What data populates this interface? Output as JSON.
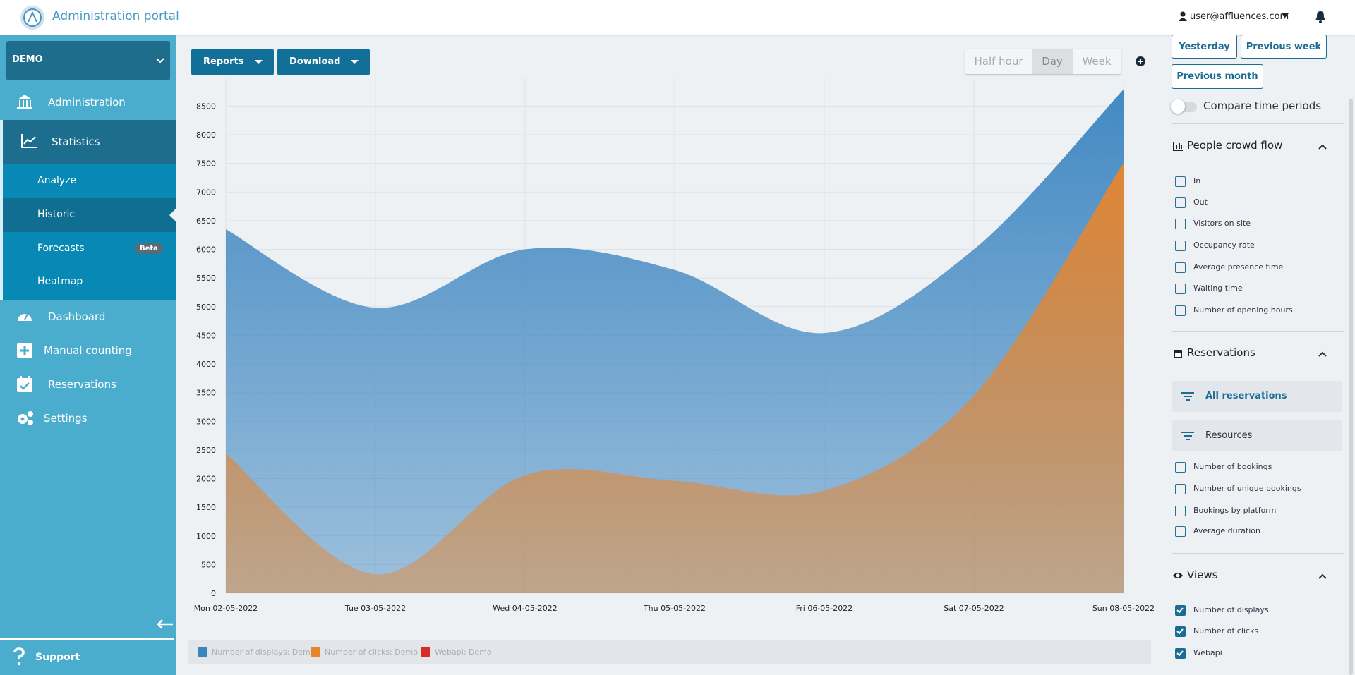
{
  "header": {
    "title": "Administration portal",
    "user": "user@affluences.com"
  },
  "sidebar": {
    "site": "DEMO",
    "items": [
      "Administration",
      "Statistics"
    ],
    "subitems": [
      {
        "label": "Analyze"
      },
      {
        "label": "Historic"
      },
      {
        "label": "Forecasts",
        "badge": "Beta"
      },
      {
        "label": "Heatmap"
      }
    ],
    "more": [
      "Dashboard",
      "Manual counting",
      "Reservations",
      "Settings"
    ],
    "support": "Support"
  },
  "toolbar": {
    "reports": "Reports",
    "download": "Download",
    "granularity": [
      "Half hour",
      "Day",
      "Week"
    ],
    "selected": 1
  },
  "panel": {
    "periods": [
      "Yesterday",
      "Previous week",
      "Previous month"
    ],
    "compare": "Compare time periods",
    "sections": [
      {
        "title": "People crowd flow",
        "options": [
          {
            "label": "In",
            "checked": false
          },
          {
            "label": "Out",
            "checked": false
          },
          {
            "label": "Visitors on site",
            "checked": false
          },
          {
            "label": "Occupancy rate",
            "checked": false
          },
          {
            "label": "Average presence time",
            "checked": false
          },
          {
            "label": "Waiting time",
            "checked": false
          },
          {
            "label": "Number of opening hours",
            "checked": false
          }
        ]
      },
      {
        "title": "Reservations",
        "filters": [
          "All reservations",
          "Resources"
        ],
        "options": [
          {
            "label": "Number of bookings",
            "checked": false
          },
          {
            "label": "Number of unique bookings",
            "checked": false
          },
          {
            "label": "Bookings by platform",
            "checked": false
          },
          {
            "label": "Average duration",
            "checked": false
          }
        ]
      },
      {
        "title": "Views",
        "options": [
          {
            "label": "Number of displays",
            "checked": true
          },
          {
            "label": "Number of clicks",
            "checked": true
          },
          {
            "label": "Webapi",
            "checked": true
          }
        ]
      }
    ]
  },
  "chart_data": {
    "type": "area",
    "categories": [
      "Mon 02-05-2022",
      "Tue 03-05-2022",
      "Wed 04-05-2022",
      "Thu 05-05-2022",
      "Fri 06-05-2022",
      "Sat 07-05-2022",
      "Sun 08-05-2022"
    ],
    "series": [
      {
        "name": "Number of displays: Demo",
        "color": "#3a84c0",
        "values": [
          6350,
          4980,
          6000,
          5640,
          4540,
          6000,
          8790
        ]
      },
      {
        "name": "Number of clicks: Demo",
        "color": "#e8852c",
        "values": [
          2440,
          330,
          2060,
          1960,
          1790,
          3450,
          7510
        ]
      },
      {
        "name": "Webapi: Demo",
        "color": "#d92a2a",
        "values": [
          null,
          null,
          null,
          null,
          null,
          null,
          null
        ]
      }
    ],
    "ylim": [
      0,
      8800
    ],
    "yticks": [
      0,
      500,
      1000,
      1500,
      2000,
      2500,
      3000,
      3500,
      4000,
      4500,
      5000,
      5500,
      6000,
      6500,
      7000,
      7500,
      8000,
      8500
    ],
    "grid": true,
    "stacked": false
  }
}
